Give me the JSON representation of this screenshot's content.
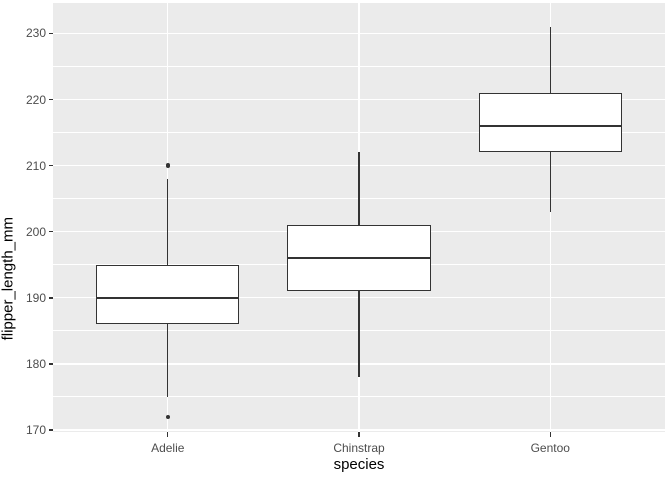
{
  "chart_data": {
    "type": "boxplot",
    "title": "",
    "xlabel": "species",
    "ylabel": "flipper_length_mm",
    "categories": [
      "Adelie",
      "Chinstrap",
      "Gentoo"
    ],
    "series": [
      {
        "name": "Adelie",
        "whisker_low": 175,
        "q1": 186,
        "median": 190,
        "q3": 195,
        "whisker_high": 208,
        "outliers": [
          172,
          210
        ]
      },
      {
        "name": "Chinstrap",
        "whisker_low": 178,
        "q1": 191,
        "median": 196,
        "q3": 201,
        "whisker_high": 212,
        "outliers": []
      },
      {
        "name": "Gentoo",
        "whisker_low": 203,
        "q1": 212,
        "median": 216,
        "q3": 221,
        "whisker_high": 231,
        "outliers": []
      }
    ],
    "y_ticks": [
      170,
      180,
      190,
      200,
      210,
      220,
      230
    ],
    "y_minor_gridlines": [
      175,
      185,
      195,
      205,
      215,
      225
    ],
    "ylim": [
      169.7,
      234.6
    ],
    "legend": "none",
    "grid": "major-and-minor",
    "colors": {
      "panel_bg": "#EBEBEB",
      "gridline": "#FFFFFF",
      "box_outline": "#333333",
      "box_fill": "#FFFFFF",
      "median": "#333333",
      "outlier": "#333333",
      "tick_label": "#4D4D4D",
      "axis_title": "#000000",
      "tick_mark": "#333333",
      "figure_bg": "#FFFFFF"
    }
  }
}
